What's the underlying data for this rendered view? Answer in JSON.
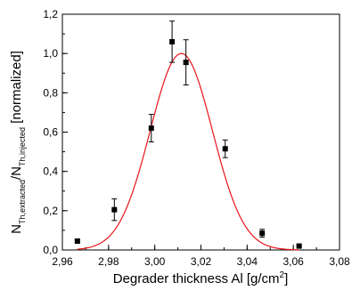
{
  "chart_data": {
    "type": "scatter",
    "xlabel": {
      "main": "Degrader thickness Al [g/cm",
      "sup": "2",
      "close": "]"
    },
    "ylabel": {
      "n1": "N",
      "sub1": "Th,extracted",
      "slash": "/",
      "n2": "N",
      "sub2": "Th,injected",
      "rest": " [normalized]"
    },
    "xlim": [
      2.96,
      3.08
    ],
    "ylim": [
      0.0,
      1.2
    ],
    "x_ticks": [
      2.96,
      2.98,
      3.0,
      3.02,
      3.04,
      3.06,
      3.08
    ],
    "x_tick_labels": [
      "2,96",
      "2,98",
      "3,00",
      "3,02",
      "3,04",
      "3,06",
      "3,08"
    ],
    "y_ticks": [
      0.0,
      0.2,
      0.4,
      0.6,
      0.8,
      1.0,
      1.2
    ],
    "y_tick_labels": [
      "0,0",
      "0,2",
      "0,4",
      "0,6",
      "0,8",
      "1,0",
      "1,2"
    ],
    "grid": false,
    "series": [
      {
        "points": [
          {
            "x": 2.9665,
            "y": 0.045,
            "err": 0.01
          },
          {
            "x": 2.9825,
            "y": 0.205,
            "err": 0.055
          },
          {
            "x": 2.9985,
            "y": 0.62,
            "err": 0.07
          },
          {
            "x": 3.0075,
            "y": 1.06,
            "err": 0.105
          },
          {
            "x": 3.0135,
            "y": 0.955,
            "err": 0.115
          },
          {
            "x": 3.0305,
            "y": 0.515,
            "err": 0.045
          },
          {
            "x": 3.0465,
            "y": 0.085,
            "err": 0.02
          },
          {
            "x": 3.0625,
            "y": 0.02,
            "err": 0.005
          }
        ]
      }
    ],
    "fit": {
      "type": "gaussian",
      "amplitude": 1.0,
      "center": 3.0115,
      "sigma": 0.0135,
      "xmin": 2.9665,
      "xmax": 3.0625
    },
    "colors": {
      "points": "#000000",
      "fit": "#e8141c",
      "axes": "#000000"
    }
  }
}
